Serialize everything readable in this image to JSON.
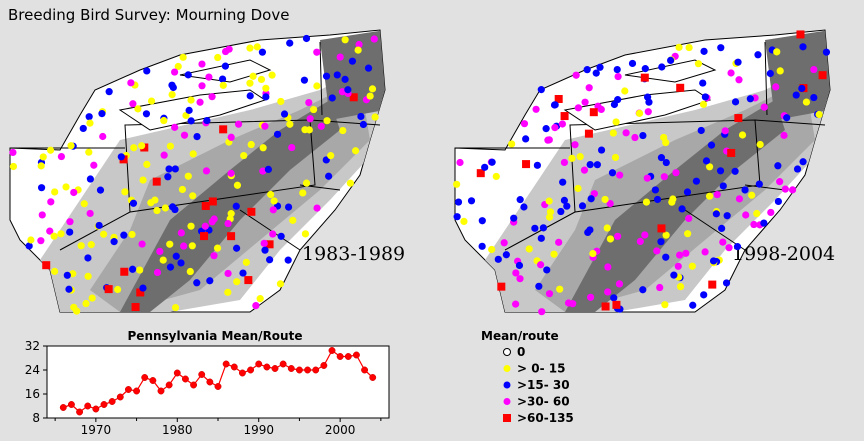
{
  "title": "Breeding Bird Survey: Mourning Dove",
  "maps": [
    {
      "period": "1983-1989"
    },
    {
      "period": "1998-2004"
    }
  ],
  "legend": {
    "title": "Mean/route",
    "items": [
      {
        "label": "0",
        "color": "#ffffff",
        "shape": "open-circle"
      },
      {
        "label": "> 0- 15",
        "color": "#ffff00",
        "shape": "circle"
      },
      {
        "label": ">15- 30",
        "color": "#0000ff",
        "shape": "circle"
      },
      {
        "label": ">30- 60",
        "color": "#ff00ff",
        "shape": "circle"
      },
      {
        "label": ">60-135",
        "color": "#ff0000",
        "shape": "square"
      }
    ]
  },
  "colors": {
    "background": "#e1e1e1",
    "abundance_light": "#c8c8c8",
    "abundance_medium": "#a8a8a8",
    "abundance_dark": "#6e6e6e",
    "trend_line": "#ff0000"
  },
  "chart_data": {
    "type": "line",
    "title": "Pennsylvania Mean/Route",
    "xlabel": "",
    "ylabel": "",
    "xlim": [
      1964,
      2006
    ],
    "ylim": [
      8,
      32
    ],
    "xticks": [
      1970,
      1980,
      1990,
      2000
    ],
    "yticks": [
      8,
      16,
      24,
      32
    ],
    "x": [
      1966,
      1967,
      1968,
      1969,
      1970,
      1971,
      1972,
      1973,
      1974,
      1975,
      1976,
      1977,
      1978,
      1979,
      1980,
      1981,
      1982,
      1983,
      1984,
      1985,
      1986,
      1987,
      1988,
      1989,
      1990,
      1991,
      1992,
      1993,
      1994,
      1995,
      1996,
      1997,
      1998,
      1999,
      2000,
      2001,
      2002,
      2003,
      2004
    ],
    "values": [
      11.5,
      12.5,
      10,
      12,
      11,
      12.5,
      13.5,
      15,
      17.5,
      17,
      21.5,
      20.5,
      17,
      19,
      23,
      21,
      19,
      22.5,
      20,
      18.5,
      26,
      25,
      23,
      24,
      26,
      25,
      24.5,
      26,
      24.5,
      24,
      24,
      24,
      25.5,
      30.5,
      28.5,
      28.5,
      29,
      24,
      21.5
    ],
    "grid": false
  }
}
